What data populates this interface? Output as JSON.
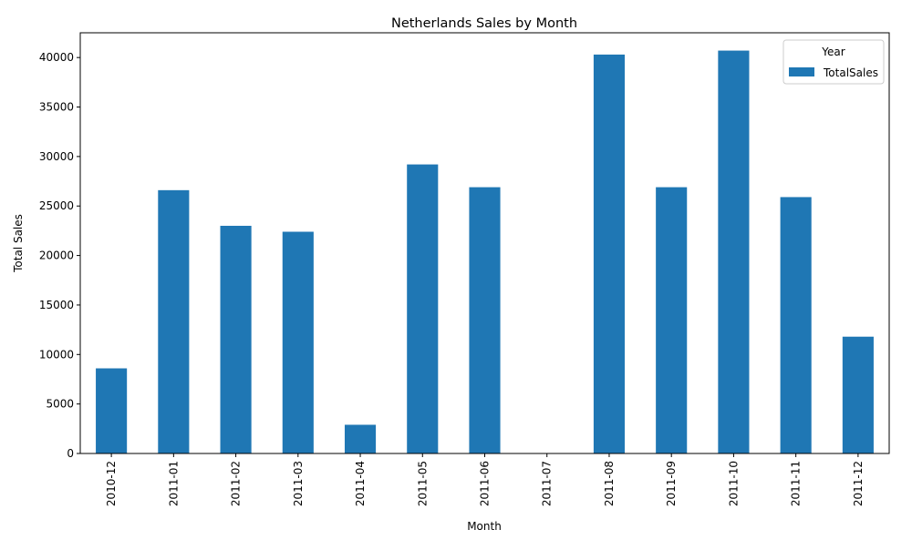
{
  "chart_data": {
    "type": "bar",
    "title": "Netherlands Sales by Month",
    "xlabel": "Month",
    "ylabel": "Total Sales",
    "categories": [
      "2010-12",
      "2011-01",
      "2011-02",
      "2011-03",
      "2011-04",
      "2011-05",
      "2011-06",
      "2011-07",
      "2011-08",
      "2011-09",
      "2011-10",
      "2011-11",
      "2011-12"
    ],
    "series": [
      {
        "name": "TotalSales",
        "values": [
          8600,
          26600,
          23000,
          22400,
          2900,
          29200,
          26900,
          0,
          40300,
          26900,
          40700,
          25900,
          11800
        ],
        "color": "#1f77b4"
      }
    ],
    "ylim": [
      0,
      42500
    ],
    "yticks": [
      0,
      5000,
      10000,
      15000,
      20000,
      25000,
      30000,
      35000,
      40000
    ],
    "legend": {
      "title": "Year",
      "placement": "top-right"
    },
    "grid": false
  }
}
